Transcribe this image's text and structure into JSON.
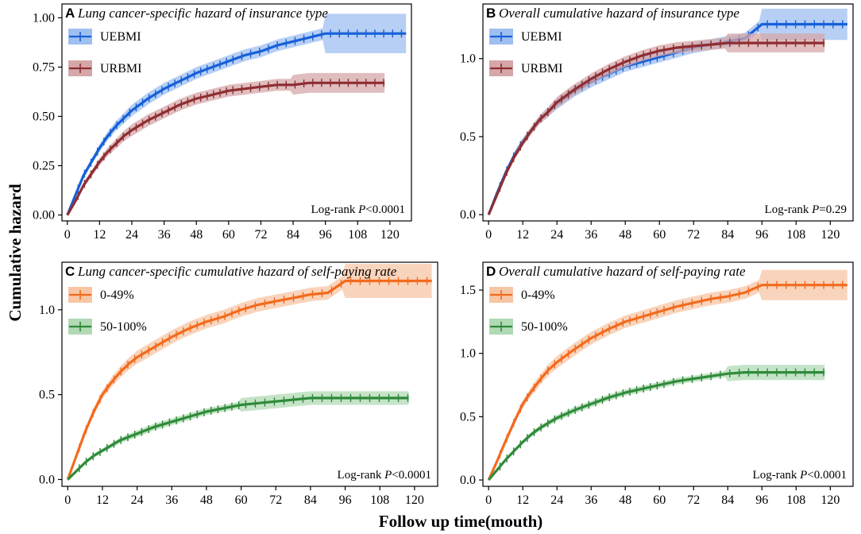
{
  "figure": {
    "ylabel": "Cumulative hazard",
    "xlabel": "Follow up time(mouth)"
  },
  "chart_data": [
    {
      "type": "line",
      "panel": "A",
      "title": "Lung cancer-specific hazard of insurance type",
      "x_ticks": [
        0,
        12,
        24,
        36,
        48,
        60,
        72,
        84,
        96,
        108,
        120
      ],
      "y_ticks": [
        "0.00",
        "0.25",
        "0.50",
        "0.75",
        "1.00"
      ],
      "xlim": [
        -2,
        128
      ],
      "ylim": [
        -0.03,
        1.07
      ],
      "logrank_prefix": "Log-rank ",
      "logrank_p": "P",
      "logrank_value": "<0.0001",
      "series": [
        {
          "name": "UEBMI",
          "color": "#1660d8",
          "band_color": "#9fbff0",
          "band": 0.03,
          "x": [
            0,
            3,
            6,
            9,
            12,
            15,
            18,
            21,
            24,
            30,
            36,
            42,
            48,
            54,
            60,
            66,
            72,
            78,
            84,
            90,
            96,
            102,
            108,
            114,
            120,
            126
          ],
          "y": [
            0,
            0.1,
            0.2,
            0.27,
            0.34,
            0.4,
            0.45,
            0.49,
            0.53,
            0.59,
            0.64,
            0.68,
            0.72,
            0.75,
            0.78,
            0.81,
            0.83,
            0.86,
            0.88,
            0.9,
            0.92,
            0.92,
            0.92,
            0.92,
            0.92,
            0.92
          ],
          "band_widen_after": 96,
          "band_wide": 0.1
        },
        {
          "name": "URBMI",
          "color": "#8e2e32",
          "band_color": "#d5a7a8",
          "band": 0.03,
          "x": [
            0,
            3,
            6,
            9,
            12,
            15,
            18,
            21,
            24,
            30,
            36,
            42,
            48,
            54,
            60,
            66,
            72,
            78,
            84,
            90,
            96,
            102,
            108,
            114,
            118
          ],
          "y": [
            0,
            0.07,
            0.15,
            0.21,
            0.27,
            0.32,
            0.36,
            0.4,
            0.43,
            0.48,
            0.52,
            0.56,
            0.59,
            0.61,
            0.63,
            0.64,
            0.65,
            0.66,
            0.66,
            0.67,
            0.67,
            0.67,
            0.67,
            0.67,
            0.67
          ],
          "band_widen_after": 84,
          "band_wide": 0.05
        }
      ]
    },
    {
      "type": "line",
      "panel": "B",
      "title": "Overall cumulative hazard of insurance type",
      "x_ticks": [
        0,
        12,
        24,
        36,
        48,
        60,
        72,
        84,
        96,
        108,
        120
      ],
      "y_ticks": [
        "0.0",
        "0.5",
        "1.0"
      ],
      "xlim": [
        -2,
        128
      ],
      "ylim": [
        -0.04,
        1.35
      ],
      "logrank_prefix": "Log-rank ",
      "logrank_p": "P",
      "logrank_value": "=0.29",
      "series": [
        {
          "name": "UEBMI",
          "color": "#1660d8",
          "band_color": "#9fbff0",
          "band": 0.035,
          "x": [
            0,
            3,
            6,
            9,
            12,
            15,
            18,
            21,
            24,
            30,
            36,
            42,
            48,
            54,
            60,
            66,
            72,
            78,
            84,
            90,
            96,
            102,
            108,
            114,
            120,
            126
          ],
          "y": [
            0,
            0.14,
            0.27,
            0.38,
            0.47,
            0.54,
            0.61,
            0.66,
            0.71,
            0.79,
            0.85,
            0.9,
            0.95,
            0.98,
            1.01,
            1.04,
            1.07,
            1.09,
            1.11,
            1.13,
            1.22,
            1.22,
            1.22,
            1.22,
            1.22,
            1.22
          ],
          "band_widen_after": 96,
          "band_wide": 0.1
        },
        {
          "name": "URBMI",
          "color": "#8e2e32",
          "band_color": "#d5a7a8",
          "band": 0.035,
          "x": [
            0,
            3,
            6,
            9,
            12,
            15,
            18,
            21,
            24,
            30,
            36,
            42,
            48,
            54,
            60,
            66,
            72,
            78,
            84,
            90,
            96,
            102,
            108,
            114,
            118
          ],
          "y": [
            0,
            0.13,
            0.26,
            0.37,
            0.46,
            0.54,
            0.61,
            0.66,
            0.72,
            0.8,
            0.87,
            0.93,
            0.98,
            1.02,
            1.05,
            1.07,
            1.08,
            1.09,
            1.1,
            1.1,
            1.1,
            1.1,
            1.1,
            1.1,
            1.1
          ],
          "band_widen_after": 84,
          "band_wide": 0.06
        }
      ]
    },
    {
      "type": "line",
      "panel": "C",
      "title": "Lung cancer-specific cumulative hazard of self-paying rate",
      "x_ticks": [
        0,
        12,
        24,
        36,
        48,
        60,
        72,
        84,
        96,
        108,
        120
      ],
      "y_ticks": [
        "0.0",
        "0.5",
        "1.0"
      ],
      "xlim": [
        -2,
        128
      ],
      "ylim": [
        -0.04,
        1.28
      ],
      "logrank_prefix": "Log-rank ",
      "logrank_p": "P",
      "logrank_value": "<0.0001",
      "series": [
        {
          "name": "0-49%",
          "color": "#f26b1d",
          "band_color": "#f7c6a6",
          "band": 0.04,
          "x": [
            0,
            3,
            6,
            9,
            12,
            15,
            18,
            21,
            24,
            30,
            36,
            42,
            48,
            54,
            60,
            66,
            72,
            78,
            84,
            90,
            96,
            102,
            108,
            114,
            120,
            126
          ],
          "y": [
            0,
            0.14,
            0.28,
            0.4,
            0.5,
            0.57,
            0.63,
            0.68,
            0.72,
            0.78,
            0.84,
            0.89,
            0.93,
            0.96,
            1.0,
            1.03,
            1.05,
            1.07,
            1.09,
            1.1,
            1.17,
            1.17,
            1.17,
            1.17,
            1.17,
            1.17
          ],
          "band_widen_after": 96,
          "band_wide": 0.1
        },
        {
          "name": "50-100%",
          "color": "#2e8b3a",
          "band_color": "#b1d9b4",
          "band": 0.02,
          "x": [
            0,
            3,
            6,
            9,
            12,
            15,
            18,
            21,
            24,
            30,
            36,
            42,
            48,
            54,
            60,
            66,
            72,
            78,
            84,
            90,
            96,
            102,
            108,
            114,
            118
          ],
          "y": [
            0,
            0.05,
            0.1,
            0.14,
            0.17,
            0.2,
            0.23,
            0.25,
            0.27,
            0.31,
            0.34,
            0.37,
            0.4,
            0.42,
            0.44,
            0.45,
            0.46,
            0.47,
            0.48,
            0.48,
            0.48,
            0.48,
            0.48,
            0.48,
            0.48
          ],
          "band_widen_after": 60,
          "band_wide": 0.04
        }
      ]
    },
    {
      "type": "line",
      "panel": "D",
      "title": "Overall cumulative hazard of self-paying rate",
      "x_ticks": [
        0,
        12,
        24,
        36,
        48,
        60,
        72,
        84,
        96,
        108,
        120
      ],
      "y_ticks": [
        "0.0",
        "0.5",
        "1.0",
        "1.5"
      ],
      "xlim": [
        -2,
        128
      ],
      "ylim": [
        -0.05,
        1.72
      ],
      "logrank_prefix": "Log-rank ",
      "logrank_p": "P",
      "logrank_value": "<0.0001",
      "series": [
        {
          "name": "0-49%",
          "color": "#f26b1d",
          "band_color": "#f7c6a6",
          "band": 0.05,
          "x": [
            0,
            3,
            6,
            9,
            12,
            15,
            18,
            21,
            24,
            30,
            36,
            42,
            48,
            54,
            60,
            66,
            72,
            78,
            84,
            90,
            96,
            102,
            108,
            114,
            120,
            126
          ],
          "y": [
            0,
            0.15,
            0.31,
            0.46,
            0.6,
            0.7,
            0.79,
            0.87,
            0.93,
            1.03,
            1.12,
            1.19,
            1.25,
            1.29,
            1.33,
            1.37,
            1.4,
            1.43,
            1.45,
            1.48,
            1.54,
            1.54,
            1.54,
            1.54,
            1.54,
            1.54
          ],
          "band_widen_after": 96,
          "band_wide": 0.12
        },
        {
          "name": "50-100%",
          "color": "#2e8b3a",
          "band_color": "#b1d9b4",
          "band": 0.025,
          "x": [
            0,
            3,
            6,
            9,
            12,
            15,
            18,
            21,
            24,
            30,
            36,
            42,
            48,
            54,
            60,
            66,
            72,
            78,
            84,
            90,
            96,
            102,
            108,
            114,
            118
          ],
          "y": [
            0,
            0.08,
            0.16,
            0.23,
            0.3,
            0.36,
            0.41,
            0.45,
            0.49,
            0.55,
            0.6,
            0.65,
            0.69,
            0.72,
            0.75,
            0.78,
            0.8,
            0.82,
            0.84,
            0.85,
            0.85,
            0.85,
            0.85,
            0.85,
            0.85
          ],
          "band_widen_after": 84,
          "band_wide": 0.06
        }
      ]
    }
  ]
}
